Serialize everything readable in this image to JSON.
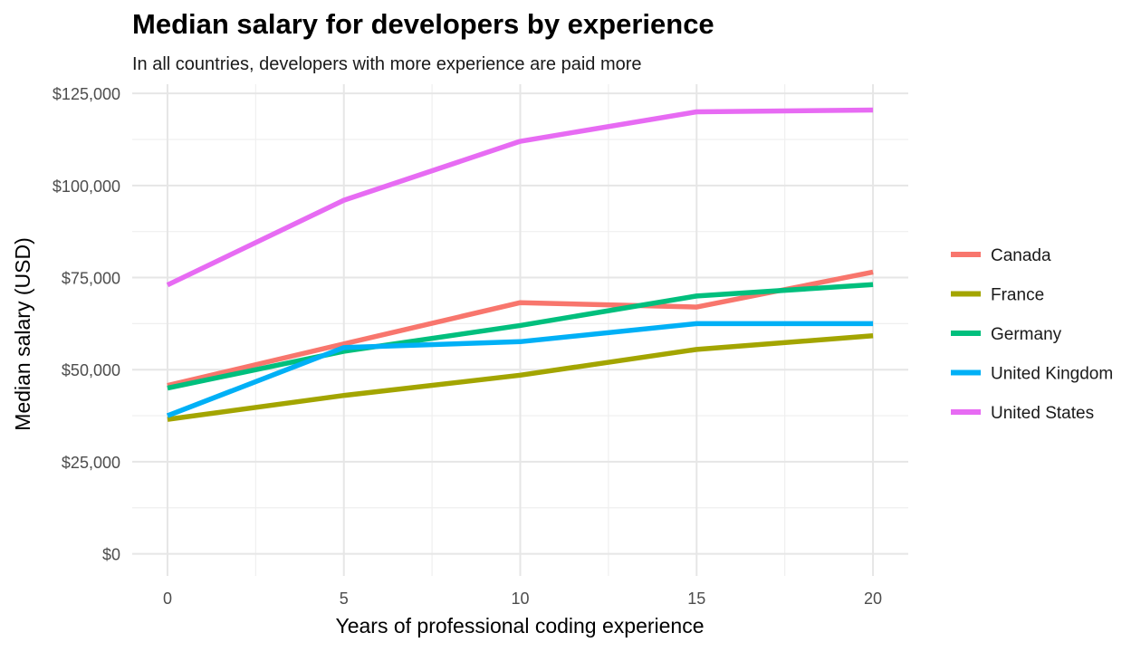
{
  "chart_data": {
    "type": "line",
    "title": "Median salary for developers by experience",
    "subtitle": "In all countries, developers with more experience are paid more",
    "xlabel": "Years of professional coding experience",
    "ylabel": "Median salary (USD)",
    "x": [
      0,
      5,
      10,
      15,
      20
    ],
    "xlim": [
      -1,
      21
    ],
    "ylim": [
      -6000,
      127500
    ],
    "x_ticks": [
      0,
      5,
      10,
      15,
      20
    ],
    "x_tick_labels": [
      "0",
      "5",
      "10",
      "15",
      "20"
    ],
    "x_minor_ticks": [
      2.5,
      7.5,
      12.5,
      17.5
    ],
    "y_ticks": [
      0,
      25000,
      50000,
      75000,
      100000,
      125000
    ],
    "y_tick_labels": [
      "$0",
      "$25,000",
      "$50,000",
      "$75,000",
      "$100,000",
      "$125,000"
    ],
    "y_minor_ticks": [
      12500,
      37500,
      62500,
      87500,
      112500
    ],
    "grid": true,
    "legend_position": "right",
    "series": [
      {
        "name": "Canada",
        "color": "#f8766d",
        "values": [
          45700,
          57000,
          68200,
          67000,
          76500
        ]
      },
      {
        "name": "France",
        "color": "#a3a500",
        "values": [
          36500,
          43000,
          48500,
          55500,
          59200
        ]
      },
      {
        "name": "Germany",
        "color": "#00bf7d",
        "values": [
          45000,
          55000,
          62000,
          70000,
          73100
        ]
      },
      {
        "name": "United Kingdom",
        "color": "#00b0f6",
        "values": [
          37500,
          56000,
          57600,
          62500,
          62500
        ]
      },
      {
        "name": "United States",
        "color": "#e76bf3",
        "values": [
          73000,
          96000,
          112000,
          120000,
          120500
        ]
      }
    ]
  }
}
